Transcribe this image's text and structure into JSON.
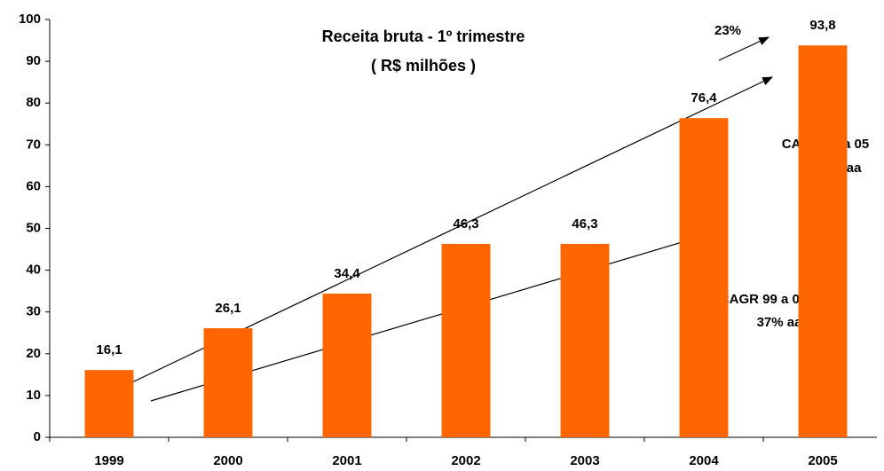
{
  "chart_data": {
    "type": "bar",
    "title": [
      "Receita bruta - 1º trimestre",
      "( R$ milhões )"
    ],
    "categories": [
      "1999",
      "2000",
      "2001",
      "2002",
      "2003",
      "2004",
      "2005"
    ],
    "values": [
      16.1,
      26.1,
      34.4,
      46.3,
      46.3,
      76.4,
      93.8
    ],
    "value_labels": [
      "16,1",
      "26,1",
      "34,4",
      "46,3",
      "46,3",
      "76,4",
      "93,8"
    ],
    "color": "#ff6600",
    "ylim": [
      0,
      100
    ],
    "yticks": [
      0,
      10,
      20,
      30,
      40,
      50,
      60,
      70,
      80,
      90,
      100
    ],
    "grid": false,
    "annotations": [
      "23%",
      "CAGR 99 a 05",
      "34% aa",
      "CAGR 99 a 04",
      "37% aa"
    ]
  }
}
